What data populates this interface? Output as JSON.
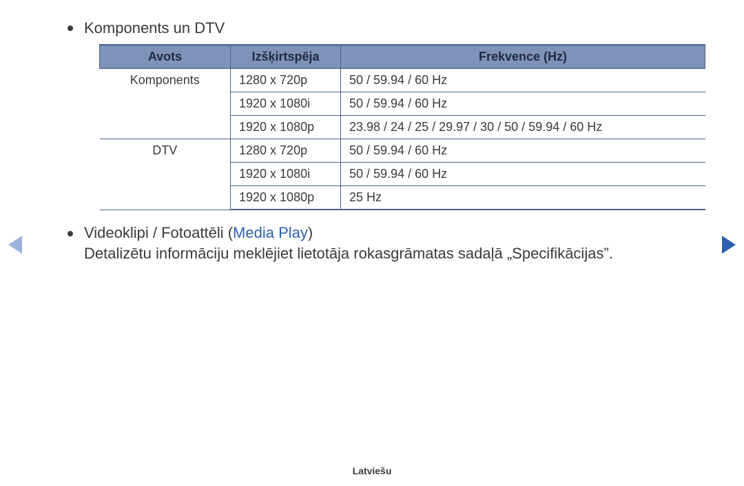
{
  "section1": {
    "title": "Komponents un DTV"
  },
  "table": {
    "headers": {
      "src": "Avots",
      "res": "Izšķirtspēja",
      "freq": "Frekvence (Hz)"
    },
    "groups": [
      {
        "src": "Komponents",
        "rows": [
          {
            "res": "1280 x 720p",
            "freq": "50 / 59.94 / 60 Hz"
          },
          {
            "res": "1920 x 1080i",
            "freq": "50 / 59.94 / 60 Hz"
          },
          {
            "res": "1920 x 1080p",
            "freq": "23.98 / 24 / 25 / 29.97 / 30 / 50 / 59.94 / 60 Hz"
          }
        ]
      },
      {
        "src": "DTV",
        "rows": [
          {
            "res": "1280 x 720p",
            "freq": "50 / 59.94 / 60 Hz"
          },
          {
            "res": "1920 x 1080i",
            "freq": "50 / 59.94 / 60 Hz"
          },
          {
            "res": "1920 x 1080p",
            "freq": "25 Hz"
          }
        ]
      }
    ],
    "header_bg": "#7e93b9",
    "border_color": "#4a5f8a"
  },
  "section2": {
    "prefix": "Videoklipi / Fotoattēli (",
    "link": "Media Play",
    "suffix": ")",
    "note": "Detalizētu informāciju meklējiet lietotāja rokasgrāmatas sadaļā „Specifikācijas”."
  },
  "footer": {
    "lang": "Latviešu"
  },
  "colors": {
    "text": "#3a3a3a",
    "link": "#2d5fb0",
    "nav_prev": "#9db2de",
    "nav_next": "#2d5fb0"
  }
}
